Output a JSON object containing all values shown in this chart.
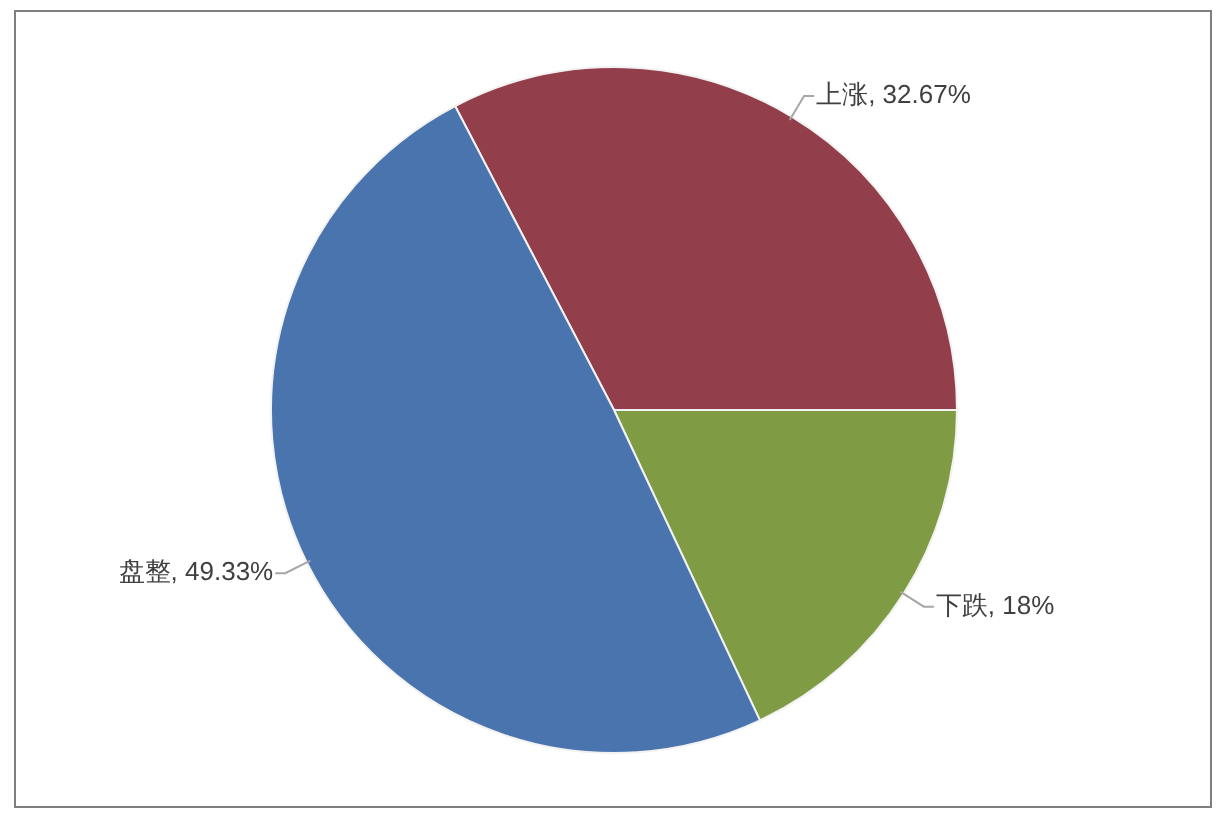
{
  "chart_data": {
    "type": "pie",
    "categories": [
      "上涨",
      "下跌",
      "盘整"
    ],
    "values": [
      32.67,
      18,
      49.33
    ],
    "colors": [
      "#923f4b",
      "#7f9c45",
      "#4a74ae"
    ],
    "value_labels": [
      "32.67%",
      "18%",
      "49.33%"
    ]
  }
}
